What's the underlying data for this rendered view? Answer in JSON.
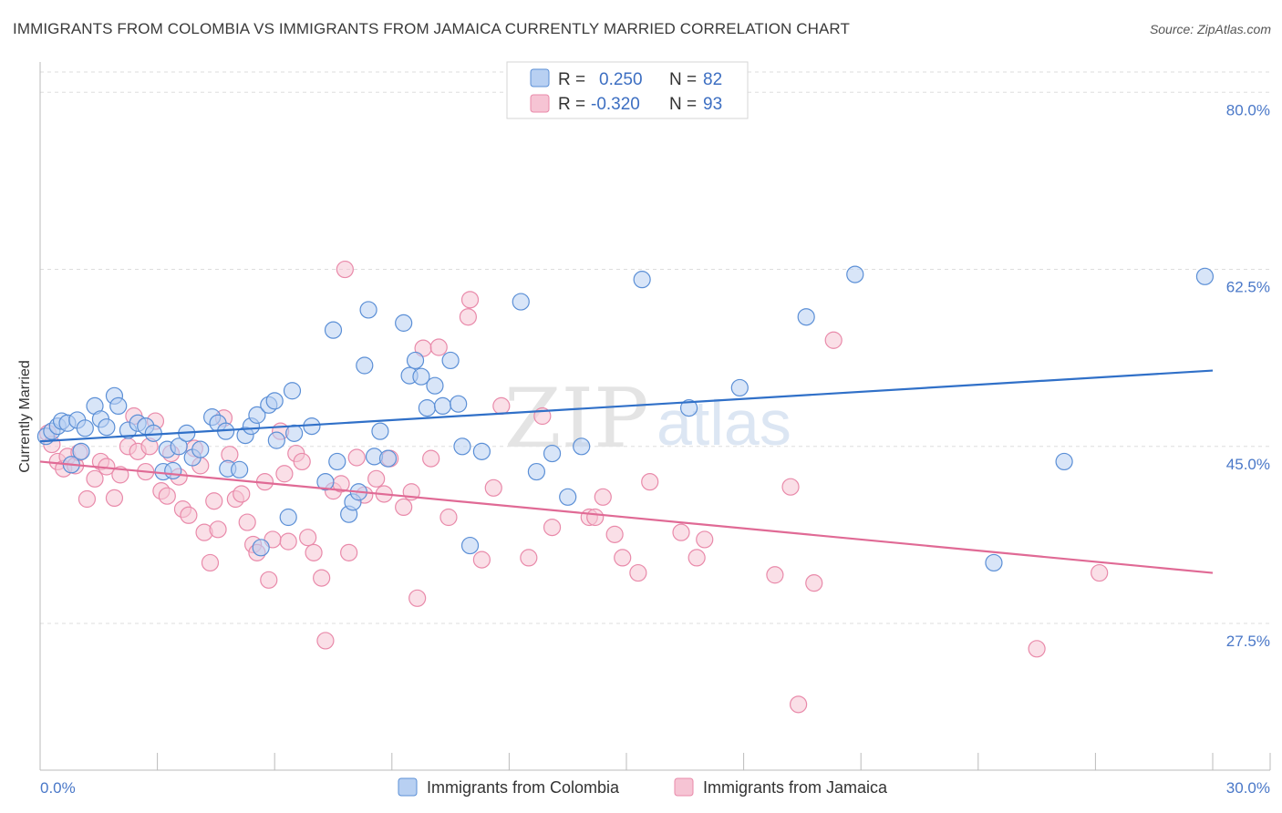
{
  "title": "IMMIGRANTS FROM COLOMBIA VS IMMIGRANTS FROM JAMAICA CURRENTLY MARRIED CORRELATION CHART",
  "source": "Source: ZipAtlas.com",
  "watermark": {
    "zip": "ZIP",
    "atlas": "atlas"
  },
  "colors": {
    "colombia_fill": "#b8d0f2",
    "colombia_stroke": "#5b8fd6",
    "colombia_line": "#3070c8",
    "jamaica_fill": "#f6c4d4",
    "jamaica_stroke": "#e98aaa",
    "jamaica_line": "#e06a95",
    "tick_text": "#4a78c8",
    "grid": "#dddddd"
  },
  "legend": {
    "rows": [
      {
        "r_label": "R =",
        "r_value": "0.250",
        "n_label": "N =",
        "n_value": "82"
      },
      {
        "r_label": "R =",
        "r_value": "-0.320",
        "n_label": "N =",
        "n_value": "93"
      }
    ]
  },
  "chart_data": {
    "type": "scatter",
    "title": "IMMIGRANTS FROM COLOMBIA VS IMMIGRANTS FROM JAMAICA CURRENTLY MARRIED CORRELATION CHART",
    "xlabel": "",
    "ylabel": "Currently Married",
    "xlim": [
      0,
      30
    ],
    "ylim": [
      13,
      83
    ],
    "x_tick_labels": [
      "0.0%",
      "30.0%"
    ],
    "y_ticks": [
      27.5,
      45.0,
      62.5,
      80.0
    ],
    "y_tick_labels": [
      "27.5%",
      "45.0%",
      "62.5%",
      "80.0%"
    ],
    "grid": "horizontal dashed",
    "legend_placement": "top-center",
    "series": [
      {
        "name": "Immigrants from Colombia",
        "r": 0.25,
        "n": 82,
        "trend": {
          "x": [
            0,
            30
          ],
          "y": [
            45.5,
            52.5
          ]
        },
        "points": [
          [
            0.15,
            46.0
          ],
          [
            0.3,
            46.5
          ],
          [
            0.45,
            47.0
          ],
          [
            0.55,
            47.5
          ],
          [
            0.7,
            47.3
          ],
          [
            0.8,
            43.2
          ],
          [
            0.95,
            47.6
          ],
          [
            1.05,
            44.5
          ],
          [
            1.15,
            46.8
          ],
          [
            1.4,
            49.0
          ],
          [
            1.55,
            47.7
          ],
          [
            1.7,
            46.9
          ],
          [
            1.9,
            50.0
          ],
          [
            2.0,
            49.0
          ],
          [
            2.25,
            46.6
          ],
          [
            2.5,
            47.3
          ],
          [
            2.7,
            47.0
          ],
          [
            2.9,
            46.3
          ],
          [
            3.15,
            42.5
          ],
          [
            3.25,
            44.7
          ],
          [
            3.4,
            42.6
          ],
          [
            3.55,
            45.0
          ],
          [
            3.75,
            46.3
          ],
          [
            3.9,
            43.9
          ],
          [
            4.1,
            44.7
          ],
          [
            4.4,
            47.9
          ],
          [
            4.55,
            47.3
          ],
          [
            4.75,
            46.5
          ],
          [
            4.8,
            42.8
          ],
          [
            5.1,
            42.7
          ],
          [
            5.25,
            46.1
          ],
          [
            5.4,
            47.0
          ],
          [
            5.55,
            48.1
          ],
          [
            5.65,
            35.0
          ],
          [
            5.85,
            49.1
          ],
          [
            6.0,
            49.5
          ],
          [
            6.05,
            45.6
          ],
          [
            6.35,
            38.0
          ],
          [
            6.45,
            50.5
          ],
          [
            6.5,
            46.3
          ],
          [
            6.95,
            47.0
          ],
          [
            7.3,
            41.5
          ],
          [
            7.5,
            56.5
          ],
          [
            7.6,
            43.5
          ],
          [
            7.9,
            38.3
          ],
          [
            8.0,
            39.5
          ],
          [
            8.15,
            40.5
          ],
          [
            8.3,
            53.0
          ],
          [
            8.4,
            58.5
          ],
          [
            8.55,
            44.0
          ],
          [
            8.7,
            46.5
          ],
          [
            8.9,
            43.8
          ],
          [
            9.3,
            57.2
          ],
          [
            9.45,
            52.0
          ],
          [
            9.6,
            53.5
          ],
          [
            9.75,
            51.9
          ],
          [
            9.9,
            48.8
          ],
          [
            10.1,
            51.0
          ],
          [
            10.3,
            49.0
          ],
          [
            10.5,
            53.5
          ],
          [
            10.7,
            49.2
          ],
          [
            10.8,
            45.0
          ],
          [
            11.0,
            35.2
          ],
          [
            11.3,
            44.5
          ],
          [
            12.3,
            59.3
          ],
          [
            12.7,
            42.5
          ],
          [
            13.1,
            44.3
          ],
          [
            13.5,
            40.0
          ],
          [
            13.85,
            45.0
          ],
          [
            15.4,
            61.5
          ],
          [
            16.6,
            48.8
          ],
          [
            17.9,
            50.8
          ],
          [
            19.6,
            57.8
          ],
          [
            20.85,
            62.0
          ],
          [
            24.4,
            33.5
          ],
          [
            26.2,
            43.5
          ],
          [
            29.8,
            61.8
          ]
        ]
      },
      {
        "name": "Immigrants from Jamaica",
        "r": -0.32,
        "n": 93,
        "trend": {
          "x": [
            0,
            30
          ],
          "y": [
            43.5,
            32.5
          ]
        },
        "points": [
          [
            0.2,
            46.3
          ],
          [
            0.3,
            45.2
          ],
          [
            0.45,
            43.5
          ],
          [
            0.6,
            42.8
          ],
          [
            0.7,
            44.0
          ],
          [
            0.9,
            43.1
          ],
          [
            1.0,
            44.4
          ],
          [
            1.2,
            39.8
          ],
          [
            1.4,
            41.8
          ],
          [
            1.55,
            43.5
          ],
          [
            1.7,
            43.0
          ],
          [
            1.9,
            39.9
          ],
          [
            2.05,
            42.2
          ],
          [
            2.25,
            45.0
          ],
          [
            2.4,
            48.0
          ],
          [
            2.5,
            44.5
          ],
          [
            2.7,
            42.5
          ],
          [
            2.8,
            45.0
          ],
          [
            2.95,
            47.5
          ],
          [
            3.1,
            40.6
          ],
          [
            3.25,
            40.1
          ],
          [
            3.35,
            44.3
          ],
          [
            3.55,
            42.0
          ],
          [
            3.65,
            38.8
          ],
          [
            3.8,
            38.2
          ],
          [
            3.95,
            44.8
          ],
          [
            4.1,
            43.1
          ],
          [
            4.2,
            36.5
          ],
          [
            4.35,
            33.5
          ],
          [
            4.45,
            39.6
          ],
          [
            4.55,
            36.8
          ],
          [
            4.7,
            47.8
          ],
          [
            4.85,
            44.2
          ],
          [
            5.0,
            39.8
          ],
          [
            5.15,
            40.3
          ],
          [
            5.3,
            37.5
          ],
          [
            5.45,
            35.3
          ],
          [
            5.55,
            34.5
          ],
          [
            5.75,
            41.5
          ],
          [
            5.85,
            31.8
          ],
          [
            5.95,
            35.8
          ],
          [
            6.15,
            46.5
          ],
          [
            6.25,
            42.3
          ],
          [
            6.35,
            35.6
          ],
          [
            6.55,
            44.3
          ],
          [
            6.7,
            43.5
          ],
          [
            6.85,
            36.0
          ],
          [
            7.0,
            34.5
          ],
          [
            7.2,
            32.0
          ],
          [
            7.3,
            25.8
          ],
          [
            7.5,
            40.6
          ],
          [
            7.7,
            41.3
          ],
          [
            7.8,
            62.5
          ],
          [
            7.9,
            34.5
          ],
          [
            8.1,
            43.9
          ],
          [
            8.3,
            40.2
          ],
          [
            8.6,
            41.8
          ],
          [
            8.8,
            40.3
          ],
          [
            8.95,
            43.8
          ],
          [
            9.3,
            39.0
          ],
          [
            9.5,
            40.5
          ],
          [
            9.65,
            30.0
          ],
          [
            9.8,
            54.7
          ],
          [
            10.0,
            43.8
          ],
          [
            10.2,
            54.8
          ],
          [
            10.45,
            38.0
          ],
          [
            10.95,
            57.8
          ],
          [
            11.0,
            59.5
          ],
          [
            11.3,
            33.8
          ],
          [
            11.6,
            40.9
          ],
          [
            11.8,
            49.0
          ],
          [
            12.5,
            34.0
          ],
          [
            12.85,
            48.0
          ],
          [
            13.1,
            37.0
          ],
          [
            14.05,
            38.0
          ],
          [
            14.2,
            38.0
          ],
          [
            14.4,
            40.0
          ],
          [
            14.7,
            36.3
          ],
          [
            14.9,
            34.0
          ],
          [
            15.3,
            32.5
          ],
          [
            15.6,
            41.5
          ],
          [
            16.4,
            36.5
          ],
          [
            16.8,
            34.0
          ],
          [
            17.0,
            35.8
          ],
          [
            18.8,
            32.3
          ],
          [
            19.2,
            41.0
          ],
          [
            19.4,
            19.5
          ],
          [
            19.8,
            31.5
          ],
          [
            20.3,
            55.5
          ],
          [
            25.5,
            25.0
          ],
          [
            27.1,
            32.5
          ]
        ]
      }
    ]
  }
}
